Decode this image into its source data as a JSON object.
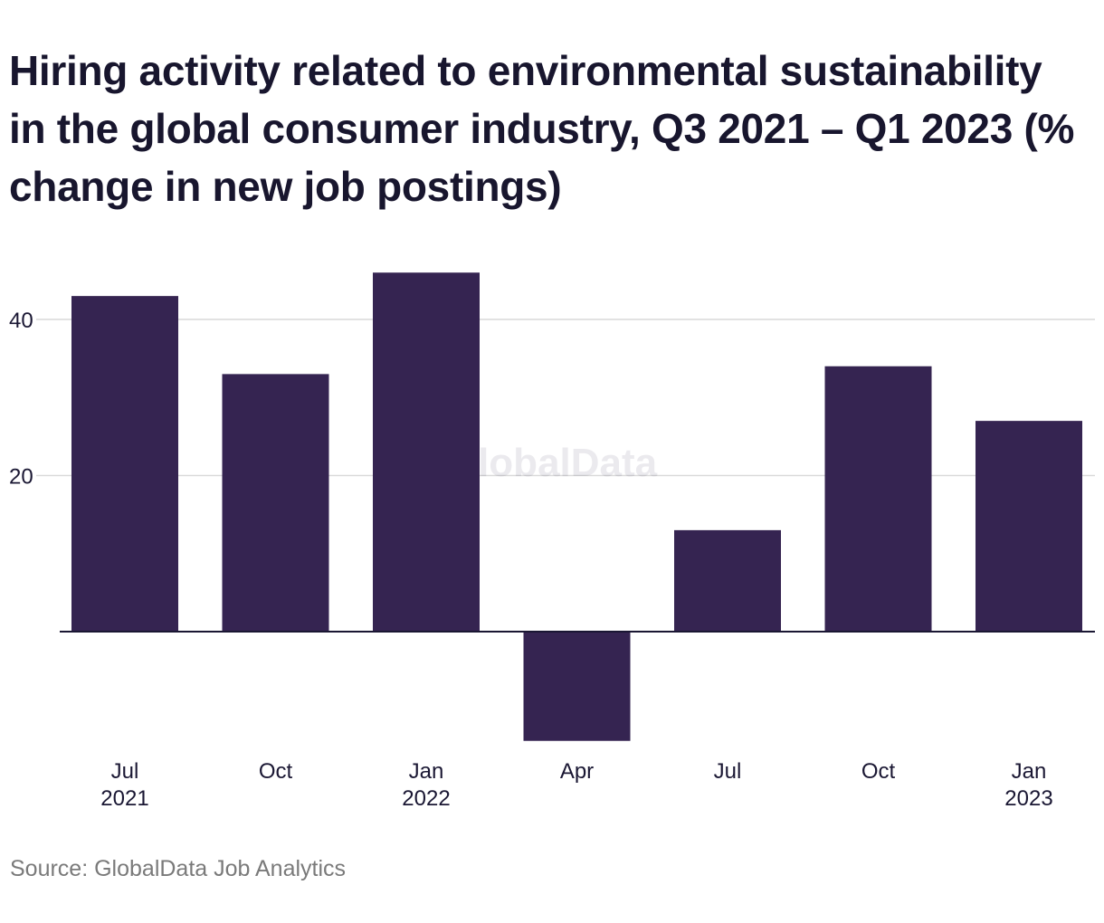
{
  "chart_data": {
    "type": "bar",
    "title": "Hiring activity related to environmental sustainability in the global consumer industry, Q3 2021 – Q1 2023 (% change in new job postings)",
    "categories": [
      {
        "month": "Jul",
        "year": "2021"
      },
      {
        "month": "Oct",
        "year": ""
      },
      {
        "month": "Jan",
        "year": "2022"
      },
      {
        "month": "Apr",
        "year": ""
      },
      {
        "month": "Jul",
        "year": ""
      },
      {
        "month": "Oct",
        "year": ""
      },
      {
        "month": "Jan",
        "year": "2023"
      }
    ],
    "values": [
      43,
      33,
      46,
      -14,
      13,
      34,
      27
    ],
    "yticks": [
      20,
      40
    ],
    "ylim": [
      -14,
      46
    ],
    "xlabel": "",
    "ylabel": "",
    "grid": true,
    "watermark": "GlobalData",
    "source": "Source: GlobalData Job Analytics"
  },
  "colors": {
    "bar": "#352451",
    "grid": "#d9d9d9",
    "axis": "#1a1733",
    "tick_text": "#1a1733",
    "watermark": "#3a2e55"
  }
}
